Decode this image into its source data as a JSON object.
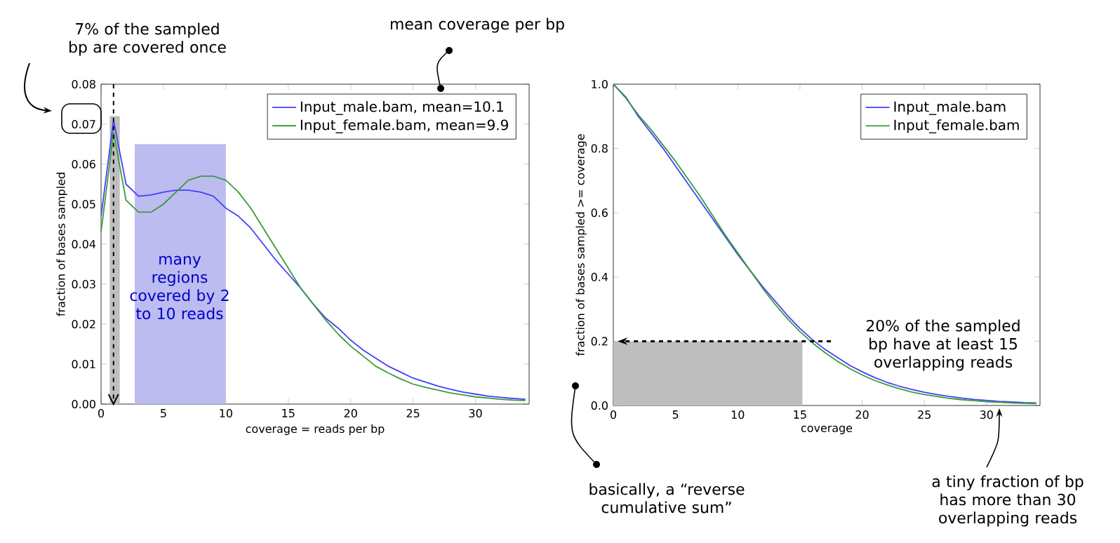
{
  "chart_data": [
    {
      "type": "line",
      "xlabel": "coverage = reads per bp",
      "ylabel": "fraction of bases sampled",
      "xlim": [
        0,
        34.3
      ],
      "ylim": [
        0,
        0.08
      ],
      "xticks": [
        0,
        5,
        10,
        15,
        20,
        25,
        30
      ],
      "yticks": [
        {
          "value": 0,
          "label": "0.00"
        },
        {
          "value": 0.01,
          "label": "0.01"
        },
        {
          "value": 0.02,
          "label": "0.02"
        },
        {
          "value": 0.03,
          "label": "0.03"
        },
        {
          "value": 0.04,
          "label": "0.04"
        },
        {
          "value": 0.05,
          "label": "0.05"
        },
        {
          "value": 0.06,
          "label": "0.06"
        },
        {
          "value": 0.07,
          "label": "0.07"
        },
        {
          "value": 0.08,
          "label": "0.08"
        }
      ],
      "legend": "top right",
      "series": [
        {
          "type": "area",
          "color": "#bebebe",
          "x": [
            0.7,
            1.5
          ],
          "values": [
            0.072,
            0.072
          ]
        },
        {
          "type": "area",
          "color": "#bcbcf0",
          "x": [
            2.7,
            10
          ],
          "values": [
            0.065,
            0.065
          ]
        },
        {
          "name": "Input_male.bam, mean=10.1",
          "color": "#4040ff",
          "x": [
            0,
            1,
            2,
            3,
            4,
            5,
            6,
            7,
            8,
            9,
            10,
            11,
            12,
            13,
            14,
            15,
            16,
            17,
            18,
            19,
            20,
            21,
            22,
            23,
            24,
            25,
            26,
            27,
            28,
            29,
            30,
            31,
            32,
            33,
            34
          ],
          "values": [
            0.047,
            0.071,
            0.055,
            0.052,
            0.0523,
            0.053,
            0.0535,
            0.0535,
            0.053,
            0.052,
            0.049,
            0.047,
            0.044,
            0.04,
            0.036,
            0.0325,
            0.029,
            0.025,
            0.0215,
            0.019,
            0.016,
            0.0135,
            0.0115,
            0.0095,
            0.008,
            0.0065,
            0.0055,
            0.0045,
            0.0037,
            0.003,
            0.0025,
            0.002,
            0.0017,
            0.0014,
            0.0012
          ]
        },
        {
          "name": "Input_female.bam, mean=9.9",
          "color": "#3a9a3a",
          "x": [
            0,
            1,
            2,
            3,
            4,
            5,
            6,
            7,
            8,
            9,
            10,
            11,
            12,
            13,
            14,
            15,
            16,
            17,
            18,
            19,
            20,
            21,
            22,
            23,
            24,
            25,
            26,
            27,
            28,
            29,
            30,
            31,
            32,
            33,
            34
          ],
          "values": [
            0.043,
            0.068,
            0.051,
            0.048,
            0.048,
            0.05,
            0.053,
            0.056,
            0.057,
            0.057,
            0.056,
            0.053,
            0.049,
            0.044,
            0.039,
            0.034,
            0.029,
            0.025,
            0.021,
            0.0175,
            0.0145,
            0.012,
            0.0095,
            0.0078,
            0.0063,
            0.005,
            0.0042,
            0.0035,
            0.0028,
            0.0023,
            0.0018,
            0.0015,
            0.0012,
            0.001,
            0.0009
          ]
        }
      ],
      "ref_lines": [
        {
          "axis": "x",
          "value": 1,
          "color": "#000000",
          "line_style": "dashed"
        }
      ],
      "annotations": [
        "7% of the sampled bp are covered once",
        "mean coverage per bp",
        "many regions covered by 2 to 10 reads"
      ]
    },
    {
      "type": "line",
      "xlabel": "coverage",
      "ylabel": "fraction of bases sampled >= coverage",
      "xlim": [
        0,
        34.3
      ],
      "ylim": [
        0,
        1.0
      ],
      "xticks": [
        0,
        5,
        10,
        15,
        20,
        25,
        30
      ],
      "yticks": [
        {
          "value": 0,
          "label": "0.0"
        },
        {
          "value": 0.2,
          "label": "0.2"
        },
        {
          "value": 0.4,
          "label": "0.4"
        },
        {
          "value": 0.6,
          "label": "0.6"
        },
        {
          "value": 0.8,
          "label": "0.8"
        },
        {
          "value": 1.0,
          "label": "1.0"
        }
      ],
      "legend": "top right",
      "series": [
        {
          "type": "area",
          "color": "#bebebe",
          "x": [
            0,
            15.2
          ],
          "values": [
            0.2,
            0.2
          ]
        },
        {
          "name": "Input_male.bam",
          "color": "#4040ff",
          "x": [
            0,
            1,
            2,
            3,
            4,
            5,
            6,
            7,
            8,
            9,
            10,
            11,
            12,
            13,
            14,
            15,
            16,
            17,
            18,
            19,
            20,
            21,
            22,
            23,
            24,
            25,
            26,
            27,
            28,
            29,
            30,
            31,
            32,
            33,
            34
          ],
          "values": [
            1.0,
            0.96,
            0.9,
            0.85,
            0.8,
            0.745,
            0.69,
            0.635,
            0.58,
            0.525,
            0.47,
            0.42,
            0.37,
            0.325,
            0.28,
            0.24,
            0.205,
            0.175,
            0.15,
            0.125,
            0.105,
            0.087,
            0.072,
            0.06,
            0.05,
            0.041,
            0.034,
            0.028,
            0.023,
            0.019,
            0.016,
            0.013,
            0.011,
            0.009,
            0.008
          ]
        },
        {
          "name": "Input_female.bam",
          "color": "#3a9a3a",
          "x": [
            0,
            1,
            2,
            3,
            4,
            5,
            6,
            7,
            8,
            9,
            10,
            11,
            12,
            13,
            14,
            15,
            16,
            17,
            18,
            19,
            20,
            21,
            22,
            23,
            24,
            25,
            26,
            27,
            28,
            29,
            30,
            31,
            32,
            33,
            34
          ],
          "values": [
            1.0,
            0.957,
            0.905,
            0.86,
            0.81,
            0.76,
            0.705,
            0.65,
            0.59,
            0.53,
            0.475,
            0.42,
            0.365,
            0.315,
            0.27,
            0.23,
            0.195,
            0.165,
            0.138,
            0.115,
            0.095,
            0.078,
            0.064,
            0.052,
            0.042,
            0.034,
            0.028,
            0.022,
            0.018,
            0.015,
            0.012,
            0.01,
            0.008,
            0.007,
            0.006
          ]
        }
      ],
      "annotations": [
        "20% of the sampled bp have at least 15 overlapping reads",
        "basically, a “reverse cumulative sum”",
        "a tiny fraction of bp has more than 30 overlapping reads"
      ]
    }
  ]
}
